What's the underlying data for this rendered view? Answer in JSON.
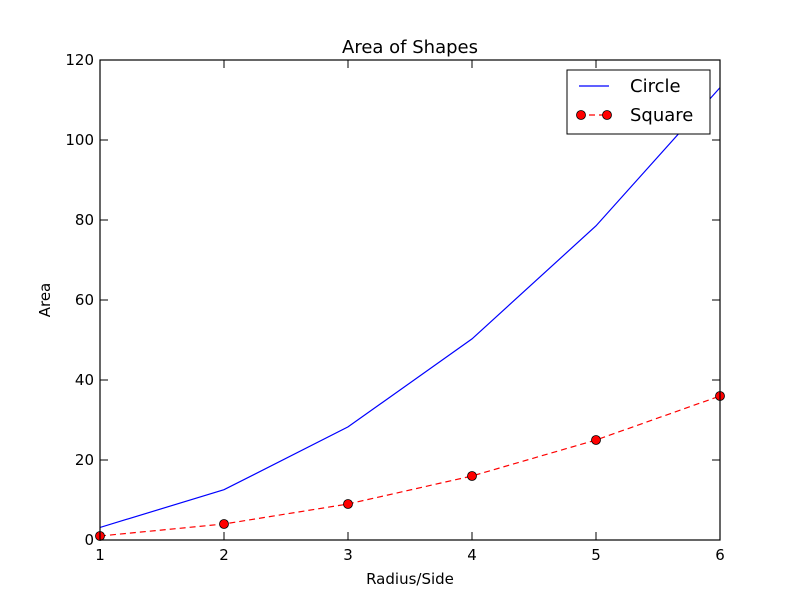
{
  "chart_data": {
    "type": "line",
    "title": "Area of Shapes",
    "xlabel": "Radius/Side",
    "ylabel": "Area",
    "xlim": [
      1,
      6
    ],
    "ylim": [
      0,
      120
    ],
    "x_ticks": [
      1,
      2,
      3,
      4,
      5,
      6
    ],
    "y_ticks": [
      0,
      20,
      40,
      60,
      80,
      100,
      120
    ],
    "grid": false,
    "legend_position": "top-right",
    "x": [
      1,
      2,
      3,
      4,
      5,
      6
    ],
    "series": [
      {
        "name": "Circle",
        "values": [
          3.14,
          12.57,
          28.27,
          50.27,
          78.54,
          113.1
        ],
        "color": "#0000ff",
        "linestyle": "solid",
        "marker": "none"
      },
      {
        "name": "Square",
        "values": [
          1,
          4,
          9,
          16,
          25,
          36
        ],
        "color": "#ff0000",
        "linestyle": "dashed",
        "marker": "circle"
      }
    ]
  }
}
